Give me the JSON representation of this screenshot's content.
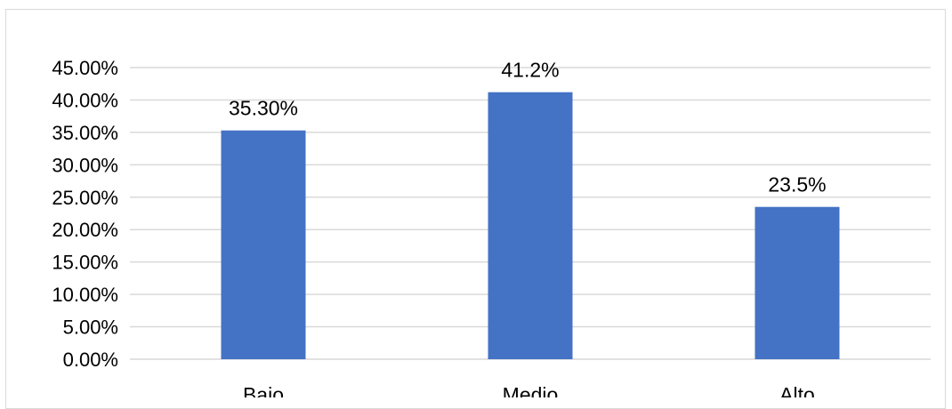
{
  "chart_data": {
    "type": "bar",
    "categories": [
      "Bajo",
      "Medio",
      "Alto"
    ],
    "values": [
      35.3,
      41.2,
      23.5
    ],
    "data_labels": [
      "35.30%",
      "41.2%",
      "23.5%"
    ],
    "y_tick_labels": [
      "0.00%",
      "5.00%",
      "10.00%",
      "15.00%",
      "20.00%",
      "25.00%",
      "30.00%",
      "35.00%",
      "40.00%",
      "45.00%"
    ],
    "ylim": [
      0,
      45
    ],
    "y_tick_step": 5,
    "grid": true,
    "legend": "none",
    "title": "",
    "xlabel": "",
    "ylabel": "",
    "bar_color": "#4472c4",
    "grid_color": "#d9d9d9"
  }
}
